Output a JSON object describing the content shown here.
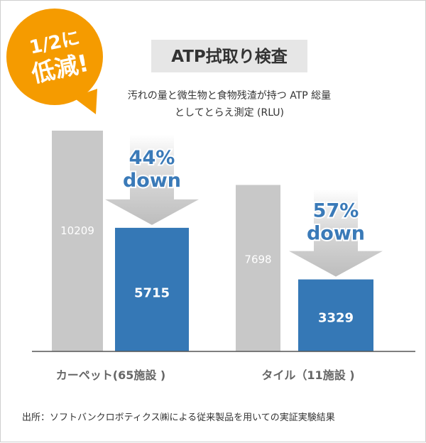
{
  "badge": {
    "line1": "1/2に",
    "line2": "低減!"
  },
  "chart_data": {
    "type": "bar",
    "title": "ATP拭取り検査",
    "subtitle_lines": [
      "汚れの量と微生物と食物残渣が持つ ATP 総量",
      "としてとらえ測定 (RLU)"
    ],
    "categories": [
      "カーペット(65施設 )",
      "タイル（11施設 )"
    ],
    "series": [
      {
        "values": [
          10209,
          7698
        ]
      },
      {
        "values": [
          5715,
          3329
        ]
      }
    ],
    "reductions": [
      {
        "percent": "44%",
        "word": "down"
      },
      {
        "percent": "57%",
        "word": "down"
      }
    ],
    "ylim": [
      0,
      10209
    ],
    "grid": false,
    "colors": {
      "before": "#c8c8c8",
      "after": "#3578b6",
      "before_text": "#ffffff",
      "after_text": "#ffffff",
      "reduction_text": "#3a7ab8",
      "arrow": "#c4c4c4",
      "badge": "#f59b00",
      "title_box": "#e6e6e6"
    }
  },
  "source": "出所：ソフトバンクロボティクス㈱による従来製品を用いての実証実験結果"
}
